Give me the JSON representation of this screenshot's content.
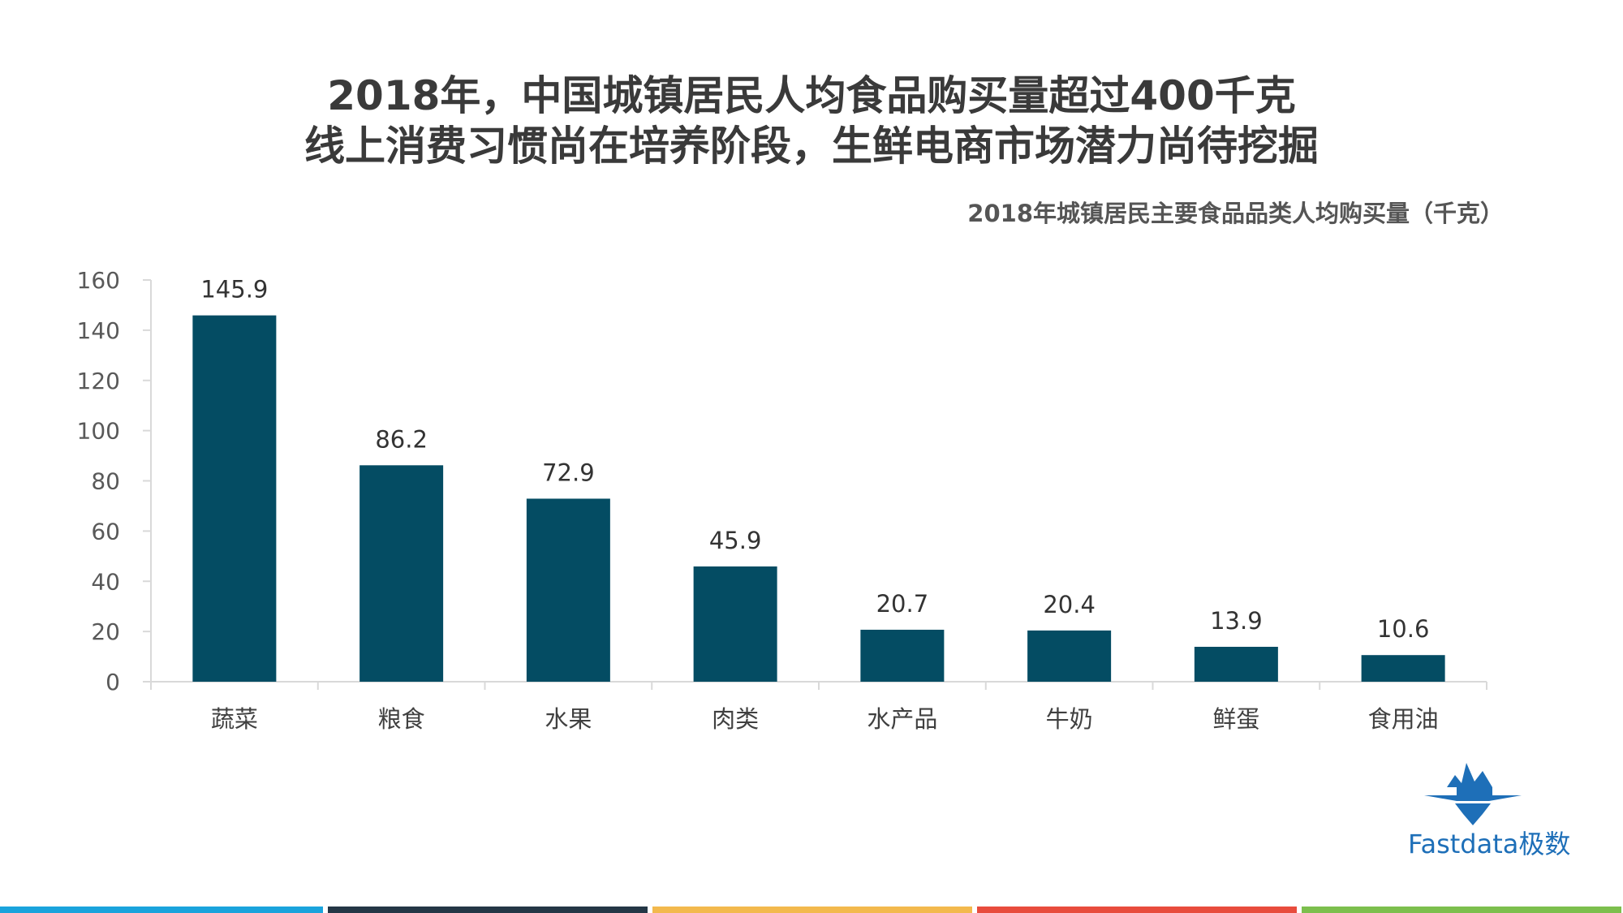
{
  "headline": {
    "line1": "2018年，中国城镇居民人均食品购买量超过400千克",
    "line2": "线上消费习惯尚在培养阶段，生鲜电商市场潜力尚待挖掘"
  },
  "chart_data": {
    "type": "bar",
    "title": "2018年城镇居民主要食品品类人均购买量（千克）",
    "categories": [
      "蔬菜",
      "粮食",
      "水果",
      "肉类",
      "水产品",
      "牛奶",
      "鲜蛋",
      "食用油"
    ],
    "values": [
      145.9,
      86.2,
      72.9,
      45.9,
      20.7,
      20.4,
      13.9,
      10.6
    ],
    "value_labels": [
      "145.9",
      "86.2",
      "72.9",
      "45.9",
      "20.7",
      "20.4",
      "13.9",
      "10.6"
    ],
    "ylim": [
      0,
      160
    ],
    "yticks": [
      0,
      20,
      40,
      60,
      80,
      100,
      120,
      140,
      160
    ],
    "bar_color": "#044c63",
    "grid": false,
    "legend": "none"
  },
  "brand": {
    "name": "Fastdata极数",
    "color": "#1e6fb8"
  },
  "footer_colors": [
    "#1aa3dc",
    "#243746",
    "#f3b94d",
    "#e84c3d",
    "#7cbf4d"
  ]
}
